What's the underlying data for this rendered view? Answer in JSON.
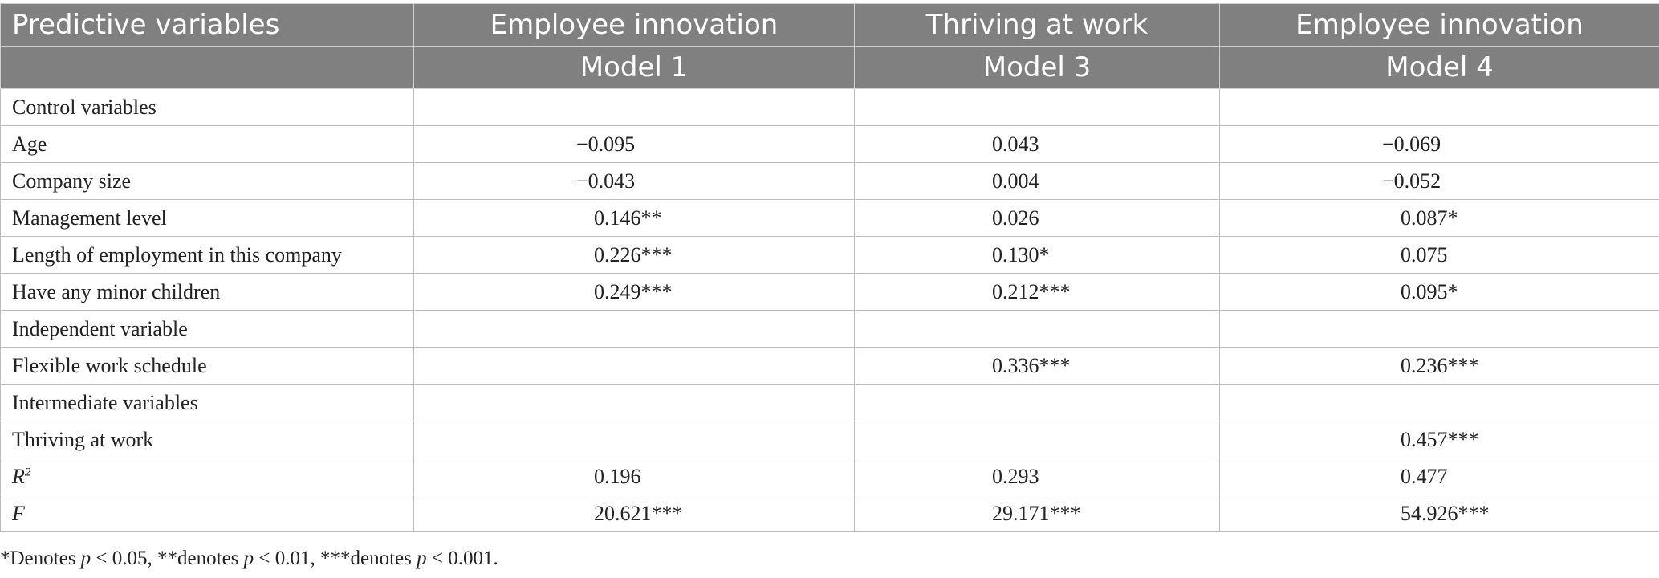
{
  "header": {
    "row1": [
      "Predictive variables",
      "Employee innovation",
      "Thriving at work",
      "Employee innovation"
    ],
    "row2": [
      "",
      "Model 1",
      "Model 3",
      "Model 4"
    ]
  },
  "rows": [
    {
      "label": "Control variables",
      "m1": "",
      "m3": "",
      "m4": ""
    },
    {
      "label": "Age",
      "m1": "−0.095",
      "m3": "0.043",
      "m4": "−0.069"
    },
    {
      "label": "Company size",
      "m1": "−0.043",
      "m3": "0.004",
      "m4": "−0.052"
    },
    {
      "label": "Management level",
      "m1": "0.146**",
      "m3": "0.026",
      "m4": "0.087*"
    },
    {
      "label": "Length of employment in this company",
      "m1": "0.226***",
      "m3": "0.130*",
      "m4": "0.075"
    },
    {
      "label": "Have any minor children",
      "m1": "0.249***",
      "m3": "0.212***",
      "m4": "0.095*"
    },
    {
      "label": "Independent variable",
      "m1": "",
      "m3": "",
      "m4": ""
    },
    {
      "label": "Flexible work schedule",
      "m1": "",
      "m3": "0.336***",
      "m4": "0.236***"
    },
    {
      "label": "Intermediate variables",
      "m1": "",
      "m3": "",
      "m4": ""
    },
    {
      "label": "Thriving at work",
      "m1": "",
      "m3": "",
      "m4": "0.457***"
    },
    {
      "label_main": "R",
      "label_sup": "2",
      "m1": "0.196",
      "m3": "0.293",
      "m4": "0.477"
    },
    {
      "label": "F",
      "m1": "20.621***",
      "m3": "29.171***",
      "m4": "54.926***"
    }
  ],
  "note": {
    "p1": "*Denotes ",
    "p1_var": "p",
    "p1_rest": " < 0.05, **denotes ",
    "p2_var": "p",
    "p2_rest": " < 0.01, ***denotes ",
    "p3_var": "p",
    "p3_rest": " < 0.001."
  }
}
